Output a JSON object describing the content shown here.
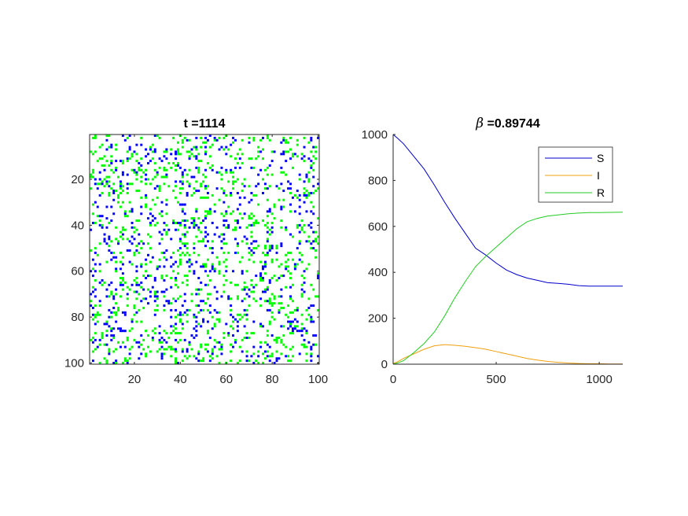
{
  "chart_data": [
    {
      "type": "heatmap",
      "title": "t =1114",
      "grid_size": [
        100,
        100
      ],
      "xlim": [
        0.5,
        100.5
      ],
      "ylim": [
        0.5,
        100.5
      ],
      "y_reversed": true,
      "xticks": [
        20,
        40,
        60,
        80,
        100
      ],
      "yticks": [
        20,
        40,
        60,
        80,
        100
      ],
      "grid": false,
      "background_color": "#ffffff",
      "state_colors": {
        "S": "#ffffff",
        "I": "#ffa500",
        "R": "#00ff00",
        "D": "#0000ff"
      },
      "approx_cell_fraction": {
        "R": 0.1,
        "D": 0.06,
        "I": 0.0
      },
      "note_seed": 1114
    },
    {
      "type": "line",
      "title_symbol": "β",
      "title_value": " =0.89744",
      "xlim": [
        0,
        1114
      ],
      "ylim": [
        0,
        1000
      ],
      "xticks": [
        0,
        500,
        1000
      ],
      "yticks": [
        0,
        200,
        400,
        600,
        800,
        1000
      ],
      "grid": false,
      "legend_position": "top-right",
      "series": [
        {
          "name": "S",
          "color": "#0000cc",
          "x": [
            0,
            20,
            50,
            100,
            150,
            200,
            250,
            300,
            350,
            400,
            450,
            500,
            550,
            600,
            650,
            700,
            750,
            800,
            850,
            900,
            950,
            1000,
            1050,
            1114
          ],
          "y": [
            1000,
            985,
            960,
            905,
            850,
            780,
            705,
            635,
            570,
            505,
            475,
            440,
            410,
            390,
            375,
            365,
            355,
            352,
            348,
            342,
            340,
            340,
            340,
            340
          ]
        },
        {
          "name": "I",
          "color": "#f0a010",
          "x": [
            0,
            20,
            50,
            100,
            150,
            200,
            250,
            300,
            350,
            400,
            450,
            500,
            550,
            600,
            650,
            700,
            750,
            800,
            850,
            900,
            950,
            1000,
            1050,
            1114
          ],
          "y": [
            3,
            10,
            25,
            45,
            65,
            80,
            85,
            82,
            78,
            72,
            65,
            55,
            45,
            35,
            25,
            18,
            12,
            8,
            5,
            3,
            2,
            2,
            1,
            1
          ]
        },
        {
          "name": "R",
          "color": "#22cc22",
          "x": [
            0,
            20,
            50,
            100,
            150,
            200,
            250,
            300,
            350,
            400,
            450,
            500,
            550,
            600,
            650,
            700,
            750,
            800,
            850,
            900,
            950,
            1000,
            1050,
            1114
          ],
          "y": [
            0,
            5,
            15,
            50,
            90,
            140,
            210,
            290,
            360,
            425,
            470,
            510,
            550,
            590,
            620,
            635,
            645,
            650,
            655,
            658,
            660,
            660,
            661,
            662
          ]
        }
      ]
    }
  ]
}
